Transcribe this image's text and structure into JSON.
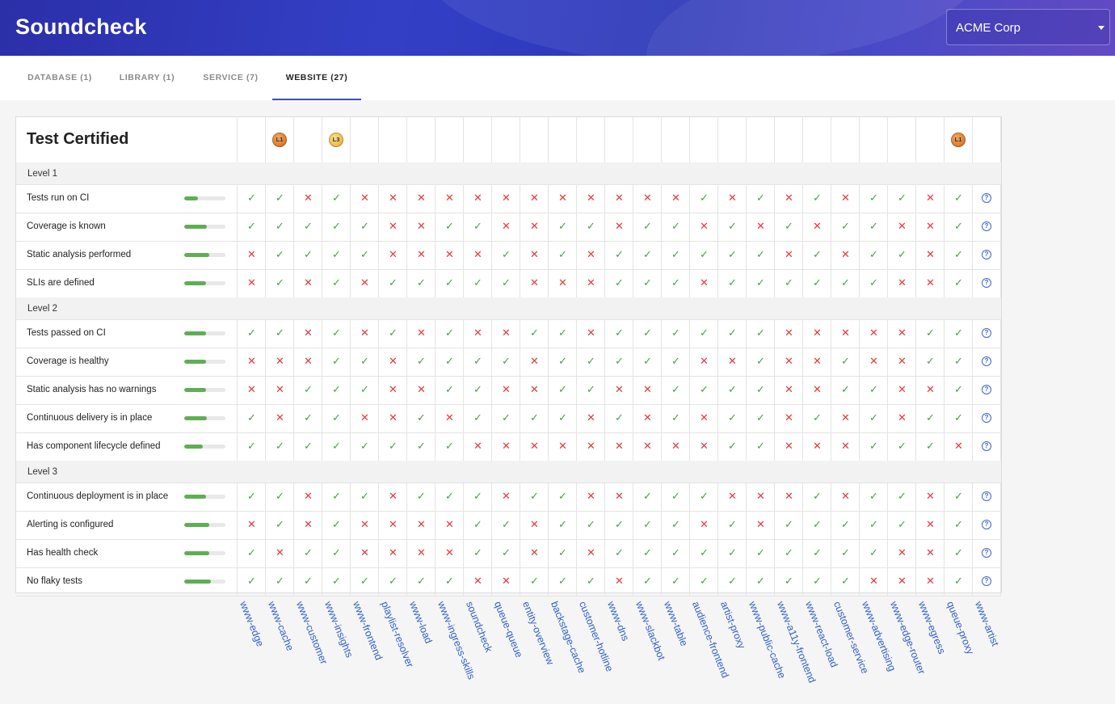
{
  "app": {
    "title": "Soundcheck"
  },
  "org_select": {
    "value": "ACME Corp"
  },
  "tabs": [
    {
      "label": "DATABASE (1)",
      "active": false
    },
    {
      "label": "LIBRARY (1)",
      "active": false
    },
    {
      "label": "SERVICE (7)",
      "active": false
    },
    {
      "label": "WEBSITE (27)",
      "active": true
    }
  ],
  "table": {
    "title": "Test Certified",
    "services": [
      "www-edge",
      "www-cache",
      "www-customer",
      "www-insights",
      "www-frontend",
      "playlist-resolver",
      "www-load",
      "www-ingress-skills",
      "soundcheck",
      "queue-queue",
      "entity-overview",
      "backstage-cache",
      "customer-hotline",
      "www-dns",
      "www-slackbot",
      "www-table",
      "audience-frontend",
      "artist-proxy",
      "www-public-cache",
      "www-a11y-frontend",
      "www-react-load",
      "customer-service",
      "www-advertising",
      "www-edge-router",
      "www-egress",
      "queue-proxy",
      "www-artist"
    ],
    "badges": [
      {
        "service_index": 1,
        "label": "L1",
        "tier": "l1"
      },
      {
        "service_index": 3,
        "label": "L3",
        "tier": "l3"
      },
      {
        "service_index": 25,
        "label": "L1",
        "tier": "l1"
      }
    ],
    "levels": [
      {
        "label": "Level 1",
        "checks": [
          {
            "label": "Tests run on CI",
            "progress": 0.33,
            "results": "YYNYNNNNNNNNNNNNYNYNYNYYNY?"
          },
          {
            "label": "Coverage is known",
            "progress": 0.55,
            "results": "YYYYYNNYYNNYYNYYNYNYNYYNNY?"
          },
          {
            "label": "Static analysis performed",
            "progress": 0.6,
            "results": "NYYYYNNNNYNYNYYYYYYNYNYYNY?"
          },
          {
            "label": "SLIs are defined",
            "progress": 0.52,
            "results": "NYNYNYYYYYNNNYYYNYYYYYYNNY?"
          }
        ]
      },
      {
        "label": "Level 2",
        "checks": [
          {
            "label": "Tests passed on CI",
            "progress": 0.52,
            "results": "YYNYNYNYNNYYNYYYYYYNNNNNYY?"
          },
          {
            "label": "Coverage is healthy",
            "progress": 0.52,
            "results": "NNNYYNYYYYNYYYYYNNYNNYNNYY?"
          },
          {
            "label": "Static analysis has no warnings",
            "progress": 0.52,
            "results": "NNYYYNNYYNNYYNNYYYYNNYYNNY?"
          },
          {
            "label": "Continuous delivery is in place",
            "progress": 0.55,
            "results": "YNYYNNYNYYYYNYNYNYYNYNYNYY?"
          },
          {
            "label": "Has component lifecycle defined",
            "progress": 0.45,
            "results": "YYYYYYYYNNNNNNNNNYYNNNYYYN?"
          }
        ]
      },
      {
        "label": "Level 3",
        "checks": [
          {
            "label": "Continuous deployment is in place",
            "progress": 0.52,
            "results": "YYNYYNYYYNYYNNYYYNNNYNYYNY?"
          },
          {
            "label": "Alerting is configured",
            "progress": 0.6,
            "results": "NYNYNNNNYYNYYYYYNYNYYYYYNY?"
          },
          {
            "label": "Has health check",
            "progress": 0.6,
            "results": "YNYYNNNNYYNYNYYYYYYYYYYNNY?"
          },
          {
            "label": "No flaky tests",
            "progress": 0.65,
            "results": "YYYYYYYYNNYYYNYYYYYYYYNNNY?"
          }
        ]
      }
    ]
  },
  "colors": {
    "pass": "#47a047",
    "fail": "#e5383b",
    "unknown": "#3d63d8",
    "accent": "#3f51b5",
    "progress": "#5fae54"
  },
  "icons": {
    "pass": "check-icon",
    "fail": "cross-icon",
    "unknown": "help-circle-icon",
    "dropdown": "caret-down-icon"
  }
}
